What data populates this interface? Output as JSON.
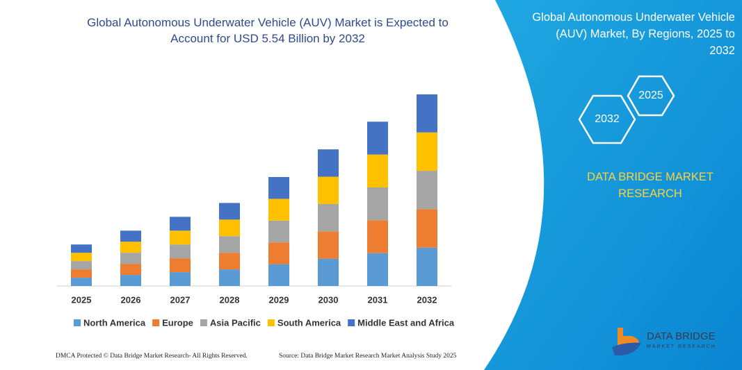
{
  "chart_data": {
    "type": "bar",
    "stacked": true,
    "title": "Global Autonomous Underwater Vehicle (AUV) Market is Expected to Account for USD 5.54 Billion by 2032",
    "categories": [
      "2025",
      "2026",
      "2027",
      "2028",
      "2029",
      "2030",
      "2031",
      "2032"
    ],
    "series": [
      {
        "name": "North America",
        "color": "#5b9bd5",
        "values": [
          0.24,
          0.32,
          0.4,
          0.48,
          0.63,
          0.79,
          0.95,
          1.11
        ]
      },
      {
        "name": "Europe",
        "color": "#ed7d31",
        "values": [
          0.24,
          0.32,
          0.4,
          0.48,
          0.63,
          0.79,
          0.95,
          1.11
        ]
      },
      {
        "name": "Asia Pacific",
        "color": "#a5a5a5",
        "values": [
          0.24,
          0.32,
          0.4,
          0.48,
          0.63,
          0.79,
          0.95,
          1.11
        ]
      },
      {
        "name": "South America",
        "color": "#ffc000",
        "values": [
          0.24,
          0.32,
          0.4,
          0.48,
          0.63,
          0.79,
          0.95,
          1.11
        ]
      },
      {
        "name": "Middle East and Africa",
        "color": "#4472c4",
        "values": [
          0.24,
          0.32,
          0.4,
          0.48,
          0.63,
          0.79,
          0.95,
          1.1
        ]
      }
    ],
    "ylim": [
      0,
      6
    ]
  },
  "sidebar": {
    "title": "Global Autonomous Underwater Vehicle (AUV) Market, By Regions, 2025 to 2032",
    "hexagons": [
      "2032",
      "2025"
    ],
    "brand": "DATA BRIDGE MARKET RESEARCH"
  },
  "logo": {
    "name": "DATA BRIDGE",
    "tagline": "MARKET RESEARCH"
  },
  "footer": {
    "left": "DMCA Protected © Data Bridge Market Research- All Rights Reserved.",
    "right": "Source: Data Bridge Market Research Market Analysis Study 2025"
  }
}
